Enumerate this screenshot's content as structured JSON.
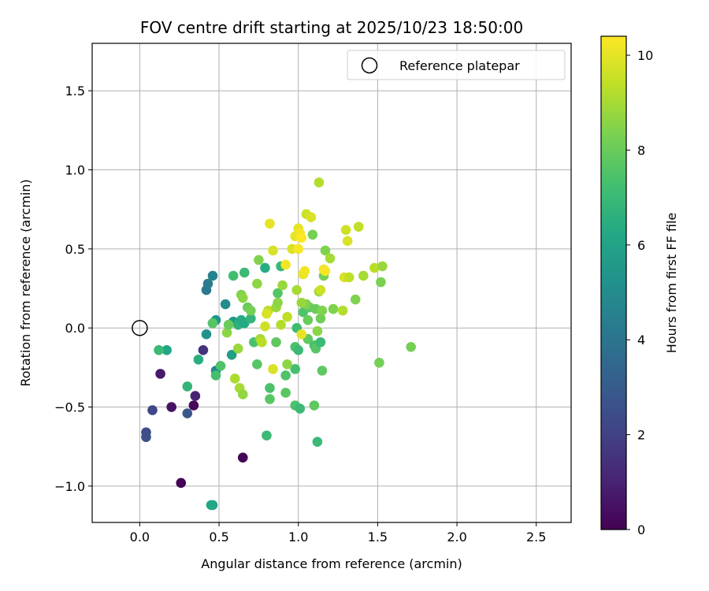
{
  "chart_data": {
    "type": "scatter",
    "title": "FOV centre drift starting at 2025/10/23 18:50:00",
    "xlabel": "Angular distance from reference (arcmin)",
    "ylabel": "Rotation from reference (arcmin)",
    "xlim": [
      -0.3,
      2.72
    ],
    "ylim": [
      -1.23,
      1.8
    ],
    "xticks": [
      0.0,
      0.5,
      1.0,
      1.5,
      2.0,
      2.5
    ],
    "xtick_labels": [
      "0.0",
      "0.5",
      "1.0",
      "1.5",
      "2.0",
      "2.5"
    ],
    "yticks": [
      -1.0,
      -0.5,
      0.0,
      0.5,
      1.0,
      1.5
    ],
    "ytick_labels": [
      "−1.0",
      "−0.5",
      "0.0",
      "0.5",
      "1.0",
      "1.5"
    ],
    "grid": true,
    "legend": {
      "position": "top-right",
      "entries": [
        "Reference platepar"
      ]
    },
    "reference_point": {
      "x": 0.0,
      "y": 0.0,
      "label": "Reference platepar"
    },
    "colorbar": {
      "label": "Hours from first FF file",
      "min": 0,
      "max": 10.4,
      "ticks": [
        0,
        2,
        4,
        6,
        8,
        10
      ],
      "tick_labels": [
        "0",
        "2",
        "4",
        "6",
        "8",
        "10"
      ],
      "colormap": "viridis"
    },
    "series": [
      {
        "name": "FOV centre drift",
        "points": [
          {
            "x": 0.26,
            "y": -0.98,
            "c": 0.1
          },
          {
            "x": 0.65,
            "y": -0.82,
            "c": 0.1
          },
          {
            "x": 0.34,
            "y": -0.49,
            "c": 0.2
          },
          {
            "x": 0.2,
            "y": -0.5,
            "c": 0.5
          },
          {
            "x": 0.13,
            "y": -0.29,
            "c": 0.7
          },
          {
            "x": 0.35,
            "y": -0.43,
            "c": 1.0
          },
          {
            "x": 0.4,
            "y": -0.14,
            "c": 1.5
          },
          {
            "x": 0.08,
            "y": -0.52,
            "c": 2.2
          },
          {
            "x": 0.04,
            "y": -0.66,
            "c": 2.4
          },
          {
            "x": 0.04,
            "y": -0.69,
            "c": 2.5
          },
          {
            "x": 0.3,
            "y": -0.54,
            "c": 2.8
          },
          {
            "x": 0.42,
            "y": 0.24,
            "c": 4.2
          },
          {
            "x": 0.43,
            "y": 0.28,
            "c": 4.3
          },
          {
            "x": 0.46,
            "y": 0.33,
            "c": 4.6
          },
          {
            "x": 0.48,
            "y": -0.27,
            "c": 4.8
          },
          {
            "x": 0.54,
            "y": 0.15,
            "c": 5.0
          },
          {
            "x": 0.42,
            "y": -0.04,
            "c": 5.3
          },
          {
            "x": 0.46,
            "y": -1.12,
            "c": 5.8
          },
          {
            "x": 0.45,
            "y": -1.12,
            "c": 6.2
          },
          {
            "x": 0.59,
            "y": 0.04,
            "c": 5.6
          },
          {
            "x": 0.58,
            "y": -0.17,
            "c": 5.8
          },
          {
            "x": 0.48,
            "y": 0.05,
            "c": 5.4
          },
          {
            "x": 0.46,
            "y": 0.03,
            "c": 5.6
          },
          {
            "x": 0.37,
            "y": -0.2,
            "c": 6.5
          },
          {
            "x": 0.3,
            "y": -0.37,
            "c": 6.8
          },
          {
            "x": 0.17,
            "y": -0.14,
            "c": 6.2
          },
          {
            "x": 0.12,
            "y": -0.14,
            "c": 7.0
          },
          {
            "x": 0.48,
            "y": -0.3,
            "c": 7.3
          },
          {
            "x": 0.51,
            "y": -0.24,
            "c": 7.5
          },
          {
            "x": 0.46,
            "y": 0.03,
            "c": 7.6
          },
          {
            "x": 0.59,
            "y": 0.33,
            "c": 7.2
          },
          {
            "x": 0.66,
            "y": 0.35,
            "c": 7.0
          },
          {
            "x": 0.62,
            "y": 0.02,
            "c": 6.6
          },
          {
            "x": 0.64,
            "y": 0.05,
            "c": 6.4
          },
          {
            "x": 0.66,
            "y": 0.03,
            "c": 6.3
          },
          {
            "x": 0.7,
            "y": 0.06,
            "c": 6.8
          },
          {
            "x": 0.72,
            "y": -0.09,
            "c": 7.4
          },
          {
            "x": 0.74,
            "y": -0.23,
            "c": 7.6
          },
          {
            "x": 0.79,
            "y": 0.38,
            "c": 6.4
          },
          {
            "x": 0.89,
            "y": 0.39,
            "c": 6.9
          },
          {
            "x": 0.87,
            "y": 0.22,
            "c": 7.6
          },
          {
            "x": 0.82,
            "y": -0.38,
            "c": 7.4
          },
          {
            "x": 0.82,
            "y": -0.45,
            "c": 7.7
          },
          {
            "x": 0.8,
            "y": -0.68,
            "c": 7.0
          },
          {
            "x": 0.86,
            "y": -0.09,
            "c": 7.8
          },
          {
            "x": 0.92,
            "y": -0.3,
            "c": 7.5
          },
          {
            "x": 0.92,
            "y": -0.41,
            "c": 7.7
          },
          {
            "x": 0.98,
            "y": -0.26,
            "c": 7.3
          },
          {
            "x": 0.98,
            "y": -0.49,
            "c": 7.4
          },
          {
            "x": 1.01,
            "y": -0.51,
            "c": 7.0
          },
          {
            "x": 0.98,
            "y": -0.12,
            "c": 7.4
          },
          {
            "x": 1.0,
            "y": -0.14,
            "c": 7.0
          },
          {
            "x": 0.99,
            "y": 0.0,
            "c": 7.1
          },
          {
            "x": 1.03,
            "y": 0.1,
            "c": 7.5
          },
          {
            "x": 1.06,
            "y": -0.07,
            "c": 7.8
          },
          {
            "x": 1.1,
            "y": -0.11,
            "c": 7.4
          },
          {
            "x": 1.11,
            "y": -0.13,
            "c": 7.6
          },
          {
            "x": 1.1,
            "y": -0.49,
            "c": 7.8
          },
          {
            "x": 1.12,
            "y": -0.72,
            "c": 7.0
          },
          {
            "x": 1.14,
            "y": -0.09,
            "c": 7.0
          },
          {
            "x": 1.15,
            "y": -0.27,
            "c": 7.8
          },
          {
            "x": 1.14,
            "y": 0.06,
            "c": 8.1
          },
          {
            "x": 1.16,
            "y": 0.33,
            "c": 8.2
          },
          {
            "x": 1.17,
            "y": 0.49,
            "c": 8.4
          },
          {
            "x": 1.09,
            "y": 0.59,
            "c": 8.2
          },
          {
            "x": 1.03,
            "y": 0.34,
            "c": 7.6
          },
          {
            "x": 1.07,
            "y": 0.13,
            "c": 7.8
          },
          {
            "x": 1.11,
            "y": 0.12,
            "c": 8.0
          },
          {
            "x": 1.05,
            "y": 0.15,
            "c": 8.4
          },
          {
            "x": 1.02,
            "y": 0.16,
            "c": 8.8
          },
          {
            "x": 1.12,
            "y": -0.02,
            "c": 8.6
          },
          {
            "x": 1.13,
            "y": 0.23,
            "c": 8.9
          },
          {
            "x": 1.2,
            "y": 0.44,
            "c": 9.0
          },
          {
            "x": 1.22,
            "y": 0.12,
            "c": 8.4
          },
          {
            "x": 1.28,
            "y": 0.11,
            "c": 9.2
          },
          {
            "x": 1.36,
            "y": 0.18,
            "c": 8.4
          },
          {
            "x": 1.38,
            "y": 0.64,
            "c": 9.4
          },
          {
            "x": 1.41,
            "y": 0.33,
            "c": 9.0
          },
          {
            "x": 1.48,
            "y": 0.38,
            "c": 9.3
          },
          {
            "x": 1.53,
            "y": 0.39,
            "c": 8.8
          },
          {
            "x": 1.52,
            "y": 0.29,
            "c": 8.3
          },
          {
            "x": 1.51,
            "y": -0.22,
            "c": 8.2
          },
          {
            "x": 1.71,
            "y": -0.12,
            "c": 8.2
          },
          {
            "x": 0.55,
            "y": -0.03,
            "c": 8.6
          },
          {
            "x": 0.56,
            "y": 0.02,
            "c": 8.0
          },
          {
            "x": 0.62,
            "y": -0.13,
            "c": 8.8
          },
          {
            "x": 0.6,
            "y": -0.32,
            "c": 9.1
          },
          {
            "x": 0.63,
            "y": -0.38,
            "c": 9.0
          },
          {
            "x": 0.65,
            "y": -0.42,
            "c": 8.7
          },
          {
            "x": 0.64,
            "y": 0.21,
            "c": 8.4
          },
          {
            "x": 0.65,
            "y": 0.19,
            "c": 8.6
          },
          {
            "x": 0.68,
            "y": 0.13,
            "c": 8.0
          },
          {
            "x": 0.7,
            "y": 0.11,
            "c": 8.2
          },
          {
            "x": 0.74,
            "y": 0.28,
            "c": 8.6
          },
          {
            "x": 0.75,
            "y": 0.43,
            "c": 8.4
          },
          {
            "x": 0.76,
            "y": -0.07,
            "c": 9.0
          },
          {
            "x": 0.77,
            "y": -0.09,
            "c": 9.3
          },
          {
            "x": 0.79,
            "y": 0.01,
            "c": 9.6
          },
          {
            "x": 0.81,
            "y": 0.11,
            "c": 9.4
          },
          {
            "x": 0.8,
            "y": 0.09,
            "c": 9.8
          },
          {
            "x": 0.82,
            "y": 0.66,
            "c": 10.0
          },
          {
            "x": 0.84,
            "y": 0.49,
            "c": 9.8
          },
          {
            "x": 0.84,
            "y": -0.26,
            "c": 9.8
          },
          {
            "x": 0.86,
            "y": 0.13,
            "c": 8.8
          },
          {
            "x": 0.87,
            "y": 0.16,
            "c": 8.6
          },
          {
            "x": 0.89,
            "y": 0.02,
            "c": 9.2
          },
          {
            "x": 0.9,
            "y": 0.27,
            "c": 8.8
          },
          {
            "x": 0.92,
            "y": 0.4,
            "c": 10.2
          },
          {
            "x": 0.93,
            "y": 0.07,
            "c": 9.4
          },
          {
            "x": 0.93,
            "y": -0.23,
            "c": 8.6
          },
          {
            "x": 0.96,
            "y": 0.5,
            "c": 9.8
          },
          {
            "x": 0.98,
            "y": 0.58,
            "c": 10.0
          },
          {
            "x": 0.99,
            "y": 0.24,
            "c": 9.0
          },
          {
            "x": 1.0,
            "y": 0.5,
            "c": 10.3
          },
          {
            "x": 1.0,
            "y": 0.63,
            "c": 10.0
          },
          {
            "x": 1.01,
            "y": 0.6,
            "c": 10.2
          },
          {
            "x": 1.02,
            "y": 0.57,
            "c": 10.4
          },
          {
            "x": 1.02,
            "y": -0.04,
            "c": 10.0
          },
          {
            "x": 1.03,
            "y": 0.34,
            "c": 10.1
          },
          {
            "x": 1.04,
            "y": 0.36,
            "c": 10.2
          },
          {
            "x": 1.05,
            "y": 0.72,
            "c": 9.6
          },
          {
            "x": 1.08,
            "y": 0.7,
            "c": 9.8
          },
          {
            "x": 1.13,
            "y": 0.92,
            "c": 9.2
          },
          {
            "x": 1.14,
            "y": 0.24,
            "c": 9.6
          },
          {
            "x": 1.16,
            "y": 0.37,
            "c": 10.2
          },
          {
            "x": 1.17,
            "y": 0.36,
            "c": 10.3
          },
          {
            "x": 1.29,
            "y": 0.32,
            "c": 9.8
          },
          {
            "x": 1.3,
            "y": 0.62,
            "c": 9.6
          },
          {
            "x": 1.31,
            "y": 0.55,
            "c": 9.8
          },
          {
            "x": 1.32,
            "y": 0.32,
            "c": 9.4
          },
          {
            "x": 1.06,
            "y": 0.05,
            "c": 8.0
          },
          {
            "x": 1.15,
            "y": 0.11,
            "c": 8.4
          }
        ]
      }
    ]
  }
}
